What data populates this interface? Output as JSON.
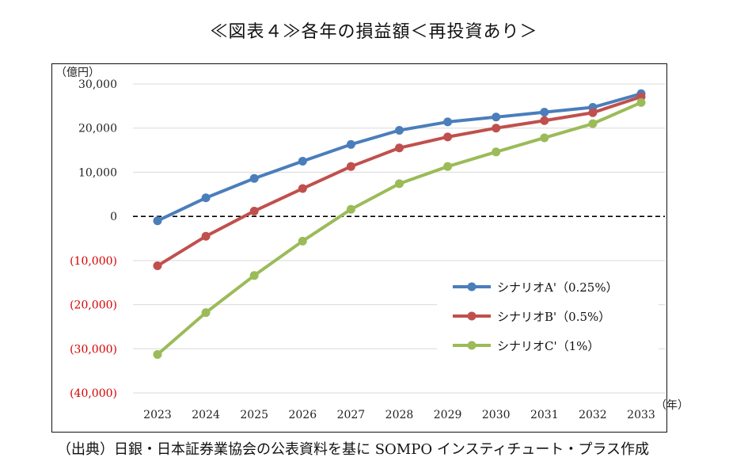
{
  "title": "≪図表４≫各年の損益額＜再投資あり＞",
  "source": "（出典）日銀・日本証券業協会の公表資料を基に SOMPO インスティチュート・プラス作成",
  "colors": {
    "negative_tick": "#d40000",
    "positive_tick": "#222222",
    "zero_line": "#000000",
    "grid": "#d9d9d9"
  },
  "chart_data": {
    "type": "line",
    "ylabel": "（億円）",
    "xlabel": "（年）",
    "categories": [
      "2023",
      "2024",
      "2025",
      "2026",
      "2027",
      "2028",
      "2029",
      "2030",
      "2031",
      "2032",
      "2033"
    ],
    "ylim": [
      -40000,
      30000
    ],
    "y_ticks": [
      {
        "value": 30000,
        "label": "30,000"
      },
      {
        "value": 20000,
        "label": "20,000"
      },
      {
        "value": 10000,
        "label": "10,000"
      },
      {
        "value": 0,
        "label": "0"
      },
      {
        "value": -10000,
        "label": "(10,000)"
      },
      {
        "value": -20000,
        "label": "(20,000)"
      },
      {
        "value": -30000,
        "label": "(30,000)"
      },
      {
        "value": -40000,
        "label": "(40,000)"
      }
    ],
    "grid": true,
    "zero_line": "dashed",
    "legend_position": "right",
    "series": [
      {
        "name": "シナリオA'（0.25%）",
        "color": "#4a7ebb",
        "values": [
          -1000,
          4200,
          8600,
          12500,
          16300,
          19500,
          21400,
          22500,
          23600,
          24700,
          27800
        ]
      },
      {
        "name": "シナリオB'（0.5%）",
        "color": "#c0504d",
        "values": [
          -11200,
          -4500,
          1200,
          6300,
          11300,
          15500,
          18000,
          20000,
          21700,
          23500,
          27100
        ]
      },
      {
        "name": "シナリオC'（1%）",
        "color": "#9bbb59",
        "values": [
          -31300,
          -21800,
          -13400,
          -5600,
          1600,
          7400,
          11300,
          14600,
          17800,
          21000,
          25800
        ]
      }
    ]
  }
}
